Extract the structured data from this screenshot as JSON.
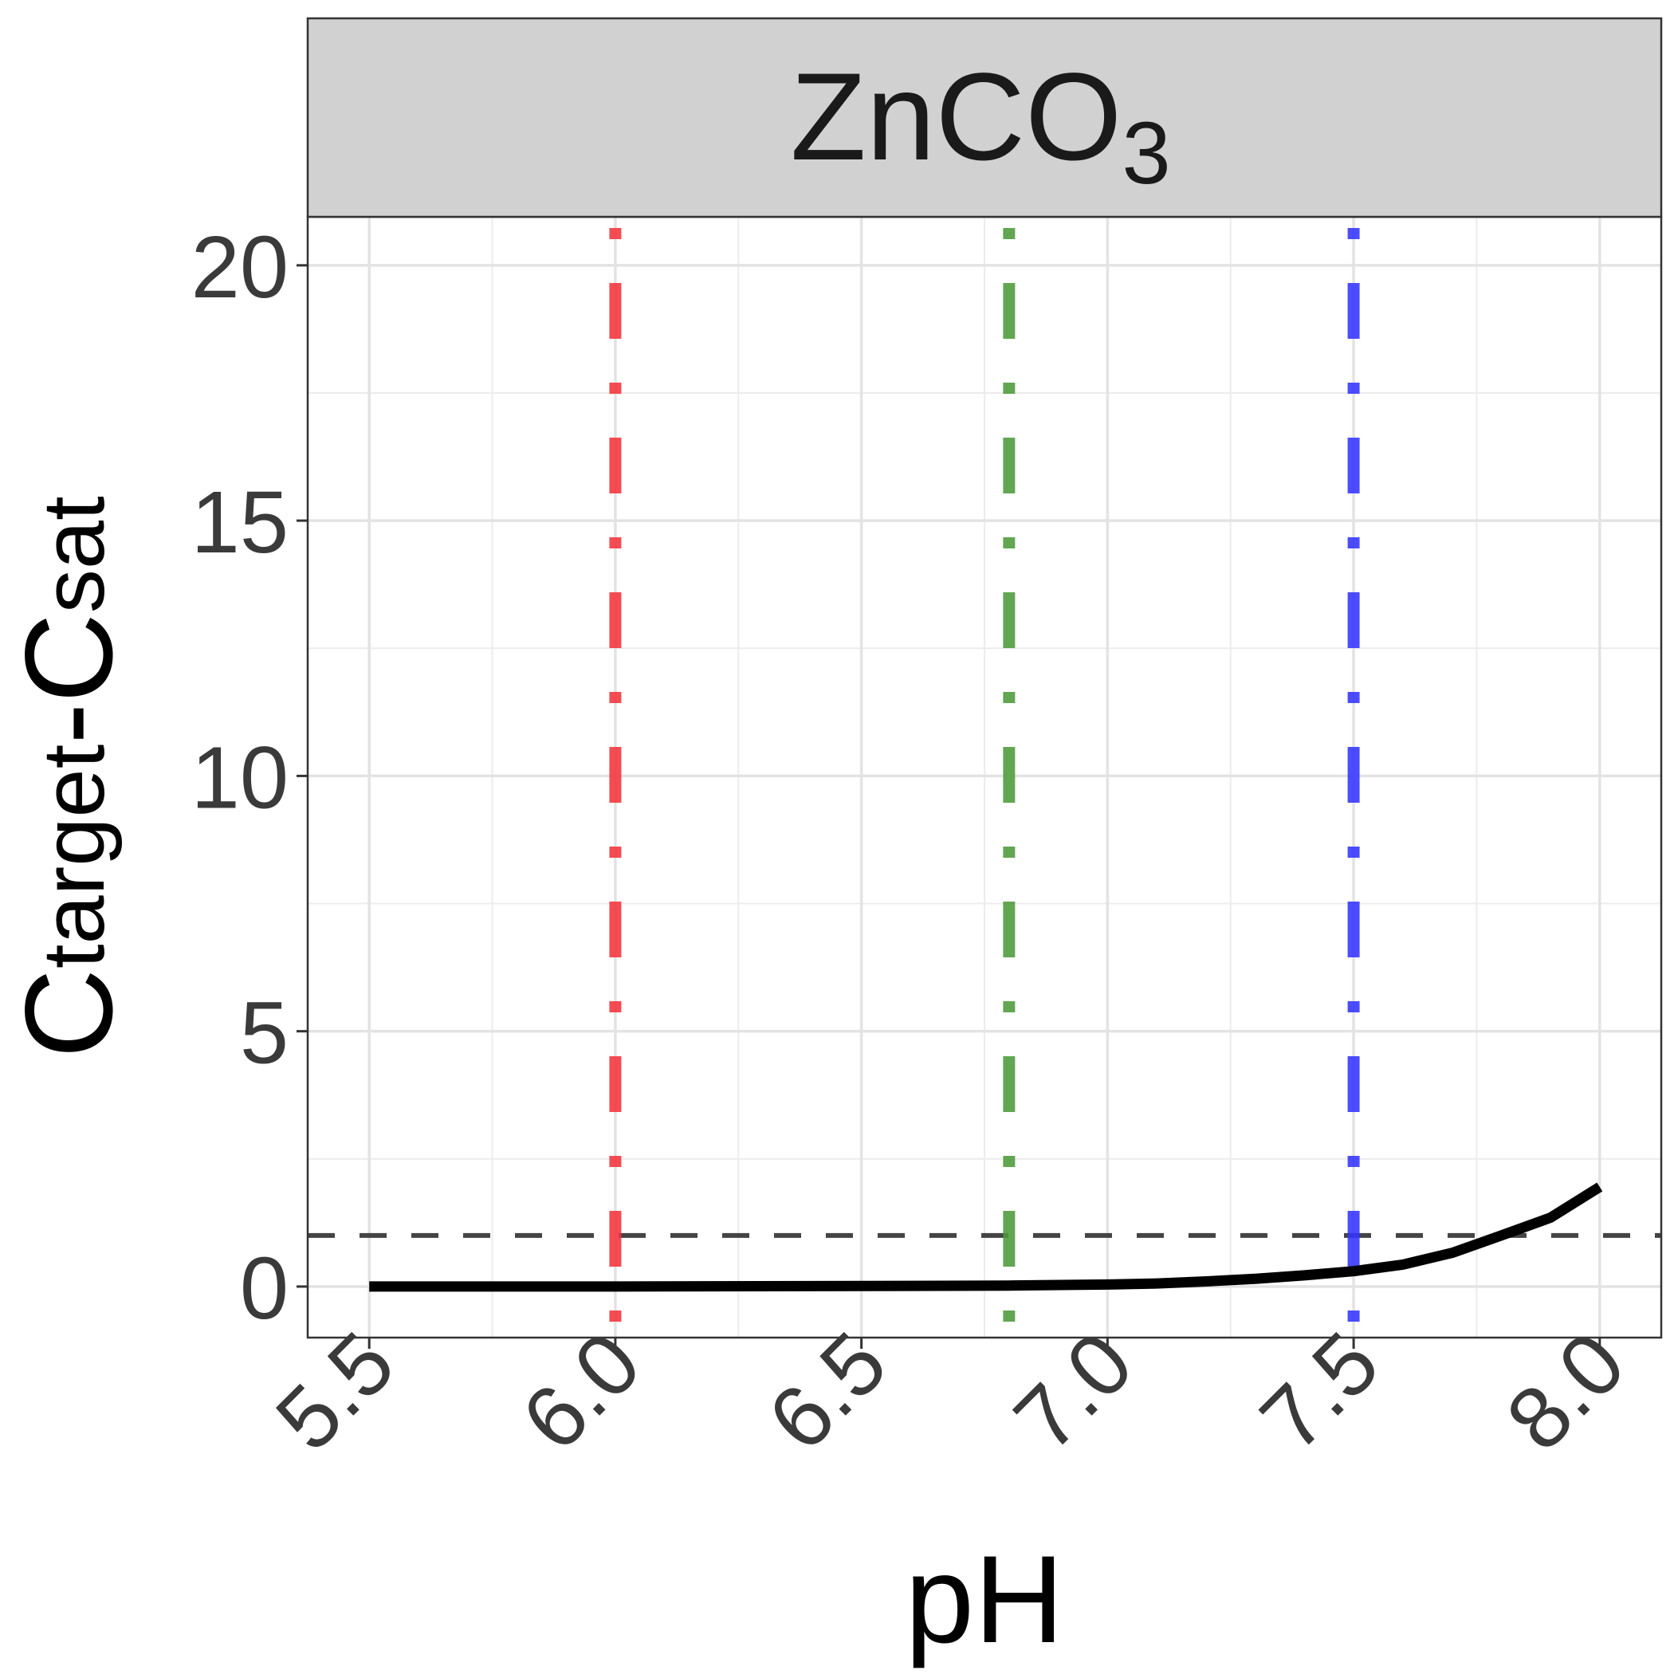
{
  "chart_data": {
    "type": "line",
    "facet": {
      "main": "ZnCO",
      "sub": "3"
    },
    "xlabel": "pH",
    "ylabel": {
      "c1": "C",
      "sub1": "target",
      "dash": "-",
      "c2": "C",
      "sub2": "sat"
    },
    "xlim": [
      5.375,
      8.125
    ],
    "ylim": [
      -1.0,
      20.95
    ],
    "x_ticks": [
      5.5,
      6.0,
      6.5,
      7.0,
      7.5,
      8.0
    ],
    "x_tick_labels": [
      "5.5",
      "6.0",
      "6.5",
      "7.0",
      "7.5",
      "8.0"
    ],
    "y_ticks": [
      0,
      5,
      10,
      15,
      20
    ],
    "y_tick_labels": [
      "0",
      "5",
      "10",
      "15",
      "20"
    ],
    "grid": true,
    "series": [
      {
        "color": "#000000",
        "x": [
          5.5,
          6.0,
          6.5,
          6.8,
          7.0,
          7.1,
          7.2,
          7.3,
          7.4,
          7.5,
          7.6,
          7.7,
          7.8,
          7.9,
          8.0
        ],
        "y": [
          0.0,
          0.0,
          0.01,
          0.02,
          0.04,
          0.06,
          0.1,
          0.15,
          0.22,
          0.3,
          0.43,
          0.66,
          1.0,
          1.35,
          1.95
        ]
      }
    ],
    "reference_lines": [
      {
        "orientation": "horizontal",
        "value": 1,
        "color": "#444444",
        "style": "dashed"
      },
      {
        "orientation": "vertical",
        "value": 6.0,
        "color": "#f2333a",
        "style": "twodash"
      },
      {
        "orientation": "vertical",
        "value": 6.8,
        "color": "#4c9a3a",
        "style": "twodash"
      },
      {
        "orientation": "vertical",
        "value": 7.5,
        "color": "#3333ff",
        "style": "twodash"
      }
    ]
  }
}
